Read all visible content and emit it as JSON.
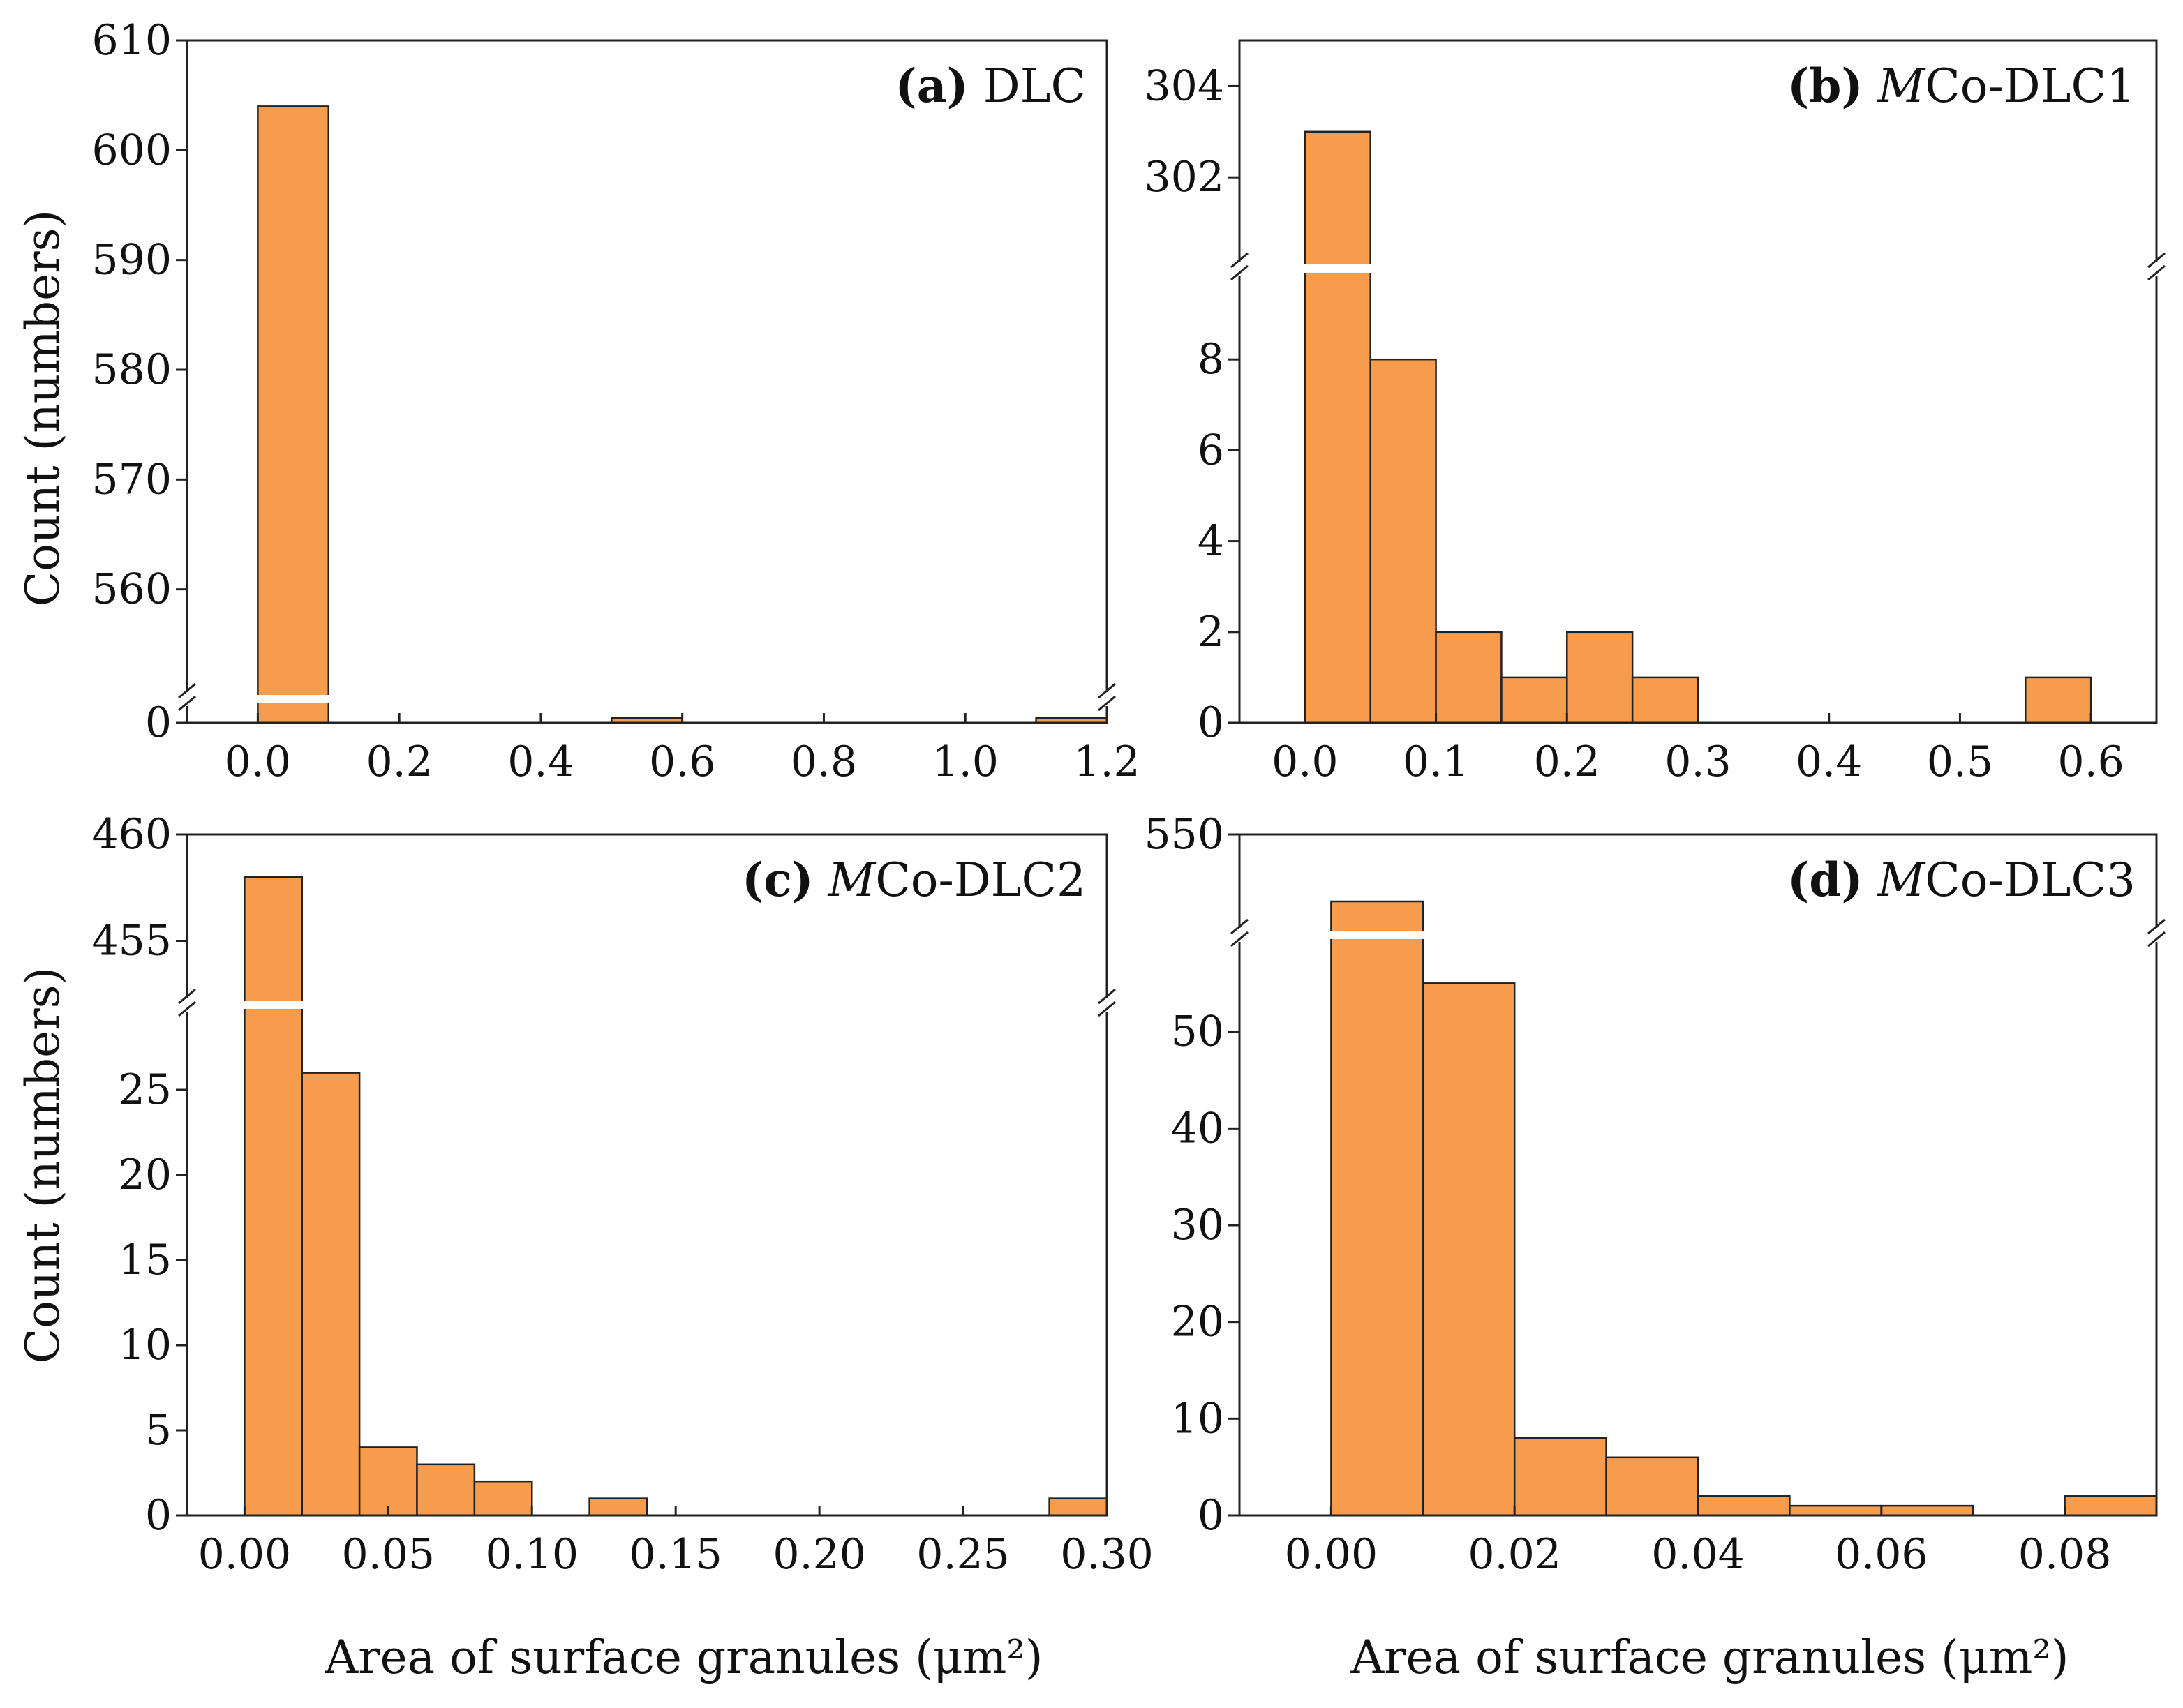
{
  "figure": {
    "ylabel": "Count (numbers)",
    "xlabel": "Area of surface granules (μm²)",
    "bar_color": "#f79b4c"
  },
  "chart_data": [
    {
      "id": "a",
      "type": "bar",
      "label_bold": "(a)",
      "label_pre": "",
      "label_italic": "",
      "label_post": "DLC",
      "bin_edges": [
        0.0,
        0.1,
        0.2,
        0.3,
        0.4,
        0.5,
        0.6,
        0.7,
        0.8,
        0.9,
        1.0,
        1.1,
        1.2
      ],
      "counts": [
        604,
        0,
        0,
        0,
        0,
        1,
        0,
        0,
        0,
        0,
        0,
        1
      ],
      "xlim": [
        -0.1,
        1.2
      ],
      "xticks": [
        0.0,
        0.2,
        0.4,
        0.6,
        0.8,
        1.0,
        1.2
      ],
      "xtick_labels": [
        "0.0",
        "0.2",
        "0.4",
        "0.6",
        "0.8",
        "1.0",
        "1.2"
      ],
      "y_lower": {
        "range": [
          0,
          5
        ],
        "ticks": [
          0
        ],
        "tick_labels": [
          "0"
        ]
      },
      "y_upper": {
        "range": [
          550,
          610
        ],
        "ticks": [
          560,
          570,
          580,
          590,
          600,
          610
        ],
        "tick_labels": [
          "560",
          "570",
          "580",
          "590",
          "600",
          "610"
        ]
      },
      "broken_axis": true
    },
    {
      "id": "b",
      "type": "bar",
      "label_bold": "(b)",
      "label_pre": " ",
      "label_italic": "M",
      "label_post": "Co-DLC1",
      "bin_edges": [
        0.0,
        0.05,
        0.1,
        0.15,
        0.2,
        0.25,
        0.3,
        0.35,
        0.4,
        0.45,
        0.5,
        0.55,
        0.6
      ],
      "counts": [
        303,
        8,
        2,
        1,
        2,
        1,
        0,
        0,
        0,
        0,
        0,
        1
      ],
      "xlim": [
        -0.05,
        0.65
      ],
      "xticks": [
        0.0,
        0.1,
        0.2,
        0.3,
        0.4,
        0.5,
        0.6
      ],
      "xtick_labels": [
        "0.0",
        "0.1",
        "0.2",
        "0.3",
        "0.4",
        "0.5",
        "0.6"
      ],
      "y_lower": {
        "range": [
          0,
          10
        ],
        "ticks": [
          0,
          2,
          4,
          6,
          8
        ],
        "tick_labels": [
          "0",
          "2",
          "4",
          "6",
          "8"
        ]
      },
      "y_upper": {
        "range": [
          300,
          305
        ],
        "ticks": [
          302,
          304
        ],
        "tick_labels": [
          "302",
          "304"
        ]
      },
      "broken_axis": true
    },
    {
      "id": "c",
      "type": "bar",
      "label_bold": "(c)",
      "label_pre": " ",
      "label_italic": "M",
      "label_post": "Co-DLC2",
      "bin_edges": [
        0.0,
        0.02,
        0.04,
        0.06,
        0.08,
        0.1,
        0.12,
        0.14,
        0.16,
        0.18,
        0.2,
        0.22,
        0.24,
        0.26,
        0.28,
        0.3
      ],
      "counts": [
        458,
        26,
        4,
        3,
        2,
        0,
        1,
        0,
        0,
        0,
        0,
        0,
        0,
        0,
        1
      ],
      "xlim": [
        -0.02,
        0.3
      ],
      "xticks": [
        0.0,
        0.05,
        0.1,
        0.15,
        0.2,
        0.25,
        0.3
      ],
      "xtick_labels": [
        "0.00",
        "0.05",
        "0.10",
        "0.15",
        "0.20",
        "0.25",
        "0.30"
      ],
      "y_lower": {
        "range": [
          0,
          30
        ],
        "ticks": [
          0,
          5,
          10,
          15,
          20,
          25
        ],
        "tick_labels": [
          "0",
          "5",
          "10",
          "15",
          "20",
          "25"
        ]
      },
      "y_upper": {
        "range": [
          452,
          460
        ],
        "ticks": [
          455,
          460
        ],
        "tick_labels": [
          "455",
          "460"
        ]
      },
      "broken_axis": true
    },
    {
      "id": "d",
      "type": "bar",
      "label_bold": "(d)",
      "label_pre": " ",
      "label_italic": "M",
      "label_post": "Co-DLC3",
      "bin_edges": [
        0.0,
        0.01,
        0.02,
        0.03,
        0.04,
        0.05,
        0.06,
        0.07,
        0.08,
        0.09
      ],
      "counts": [
        530,
        55,
        8,
        6,
        2,
        1,
        1,
        0,
        2
      ],
      "xlim": [
        -0.01,
        0.09
      ],
      "xticks": [
        0.0,
        0.02,
        0.04,
        0.06,
        0.08
      ],
      "xtick_labels": [
        "0.00",
        "0.02",
        "0.04",
        "0.06",
        "0.08"
      ],
      "y_lower": {
        "range": [
          0,
          60
        ],
        "ticks": [
          0,
          10,
          20,
          30,
          40,
          50
        ],
        "tick_labels": [
          "0",
          "10",
          "20",
          "30",
          "40",
          "50"
        ]
      },
      "y_upper": {
        "range": [
          520,
          550
        ],
        "ticks": [
          550
        ],
        "tick_labels": [
          "550"
        ]
      },
      "broken_axis": true
    }
  ]
}
